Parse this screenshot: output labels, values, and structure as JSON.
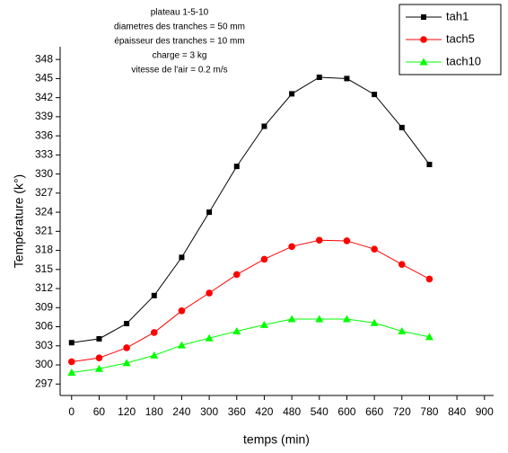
{
  "chart_data": {
    "type": "line",
    "annotation": [
      "plateau 1-5-10",
      "diametres des tranches = 50 mm",
      "épaisseur des tranches = 10 mm",
      "charge = 3 kg",
      "vitesse de l'air = 0.2 m/s"
    ],
    "x_label": "temps (min)",
    "y_label": "Température (k°)",
    "x": [
      0,
      60,
      120,
      180,
      240,
      300,
      360,
      420,
      480,
      540,
      600,
      660,
      720,
      780
    ],
    "series": [
      {
        "name": "tah1",
        "color": "#000000",
        "marker": "square",
        "values": [
          303.5,
          304.1,
          306.5,
          310.9,
          316.9,
          324.0,
          331.2,
          337.5,
          342.6,
          345.2,
          345.0,
          342.5,
          337.3,
          331.5
        ]
      },
      {
        "name": "tach5",
        "color": "#ff0000",
        "marker": "circle",
        "values": [
          300.5,
          301.1,
          302.7,
          305.1,
          308.5,
          311.3,
          314.2,
          316.6,
          318.6,
          319.6,
          319.5,
          318.2,
          315.8,
          313.5
        ]
      },
      {
        "name": "tach10",
        "color": "#00ff00",
        "marker": "triangle",
        "values": [
          298.8,
          299.4,
          300.3,
          301.5,
          303.1,
          304.2,
          305.3,
          306.3,
          307.2,
          307.2,
          307.2,
          306.6,
          305.3,
          304.4
        ]
      }
    ],
    "xlim": [
      -25,
      920
    ],
    "ylim": [
      295.2,
      350
    ],
    "xticks": [
      0,
      60,
      120,
      180,
      240,
      300,
      360,
      420,
      480,
      540,
      600,
      660,
      720,
      780,
      840,
      900
    ],
    "yticks": [
      297,
      300,
      303,
      306,
      309,
      312,
      315,
      318,
      321,
      324,
      327,
      330,
      333,
      336,
      339,
      342,
      345,
      348
    ],
    "legend": "upper right"
  }
}
